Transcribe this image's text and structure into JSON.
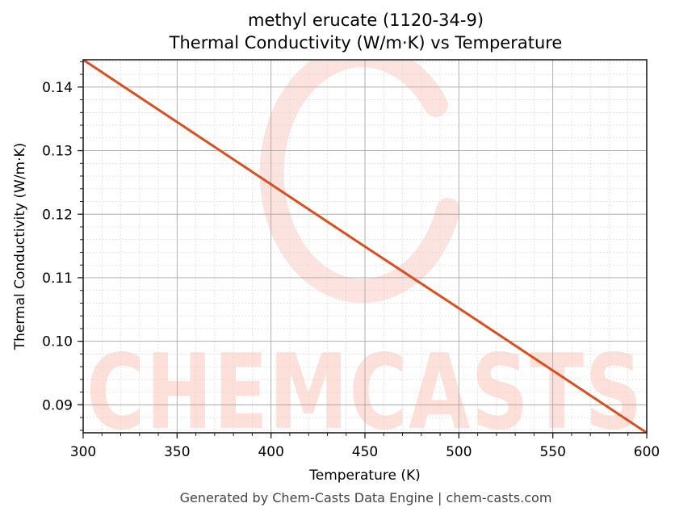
{
  "chart_data": {
    "type": "line",
    "title": "methyl erucate (1120-34-9)",
    "subtitle": "Thermal Conductivity (W/m·K) vs Temperature",
    "xlabel": "Temperature (K)",
    "ylabel": "Thermal Conductivity (W/m·K)",
    "xlim": [
      300,
      600
    ],
    "ylim": [
      0.0856,
      0.1443
    ],
    "x_ticks": [
      300,
      350,
      400,
      450,
      500,
      550,
      600
    ],
    "x_tick_labels": [
      "300",
      "350",
      "400",
      "450",
      "500",
      "550",
      "600"
    ],
    "y_ticks": [
      0.09,
      0.1,
      0.11,
      0.12,
      0.13,
      0.14
    ],
    "y_tick_labels": [
      "0.09",
      "0.10",
      "0.11",
      "0.12",
      "0.13",
      "0.14"
    ],
    "grid": true,
    "minor_grid": true,
    "legend": null,
    "series": [
      {
        "name": "Thermal Conductivity",
        "color": "#d9501e",
        "x": [
          300,
          350,
          400,
          450,
          500,
          550,
          600
        ],
        "values": [
          0.1443,
          0.1345,
          0.1247,
          0.1149,
          0.1052,
          0.0954,
          0.0856
        ]
      }
    ]
  },
  "header": {
    "title": "methyl erucate (1120-34-9)",
    "subtitle": "Thermal Conductivity (W/m·K) vs Temperature"
  },
  "axes": {
    "xlabel": "Temperature (K)",
    "ylabel": "Thermal Conductivity (W/m·K)"
  },
  "watermark": {
    "text": "CHEMCASTS",
    "color": "#fde0da"
  },
  "footer": {
    "text": "Generated by Chem-Casts Data Engine | chem-casts.com"
  }
}
